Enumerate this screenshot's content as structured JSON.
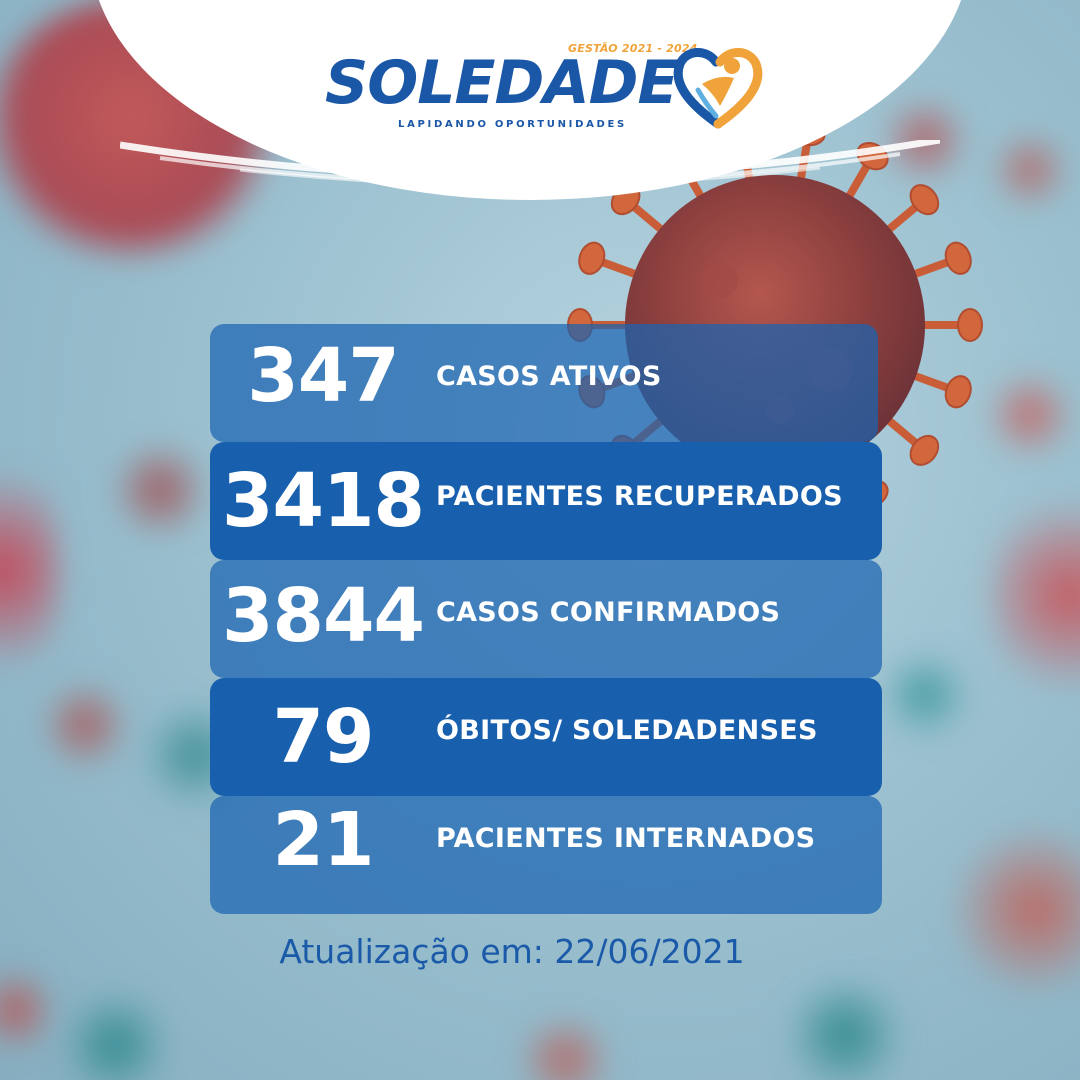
{
  "brand": {
    "name": "SOLEDADE",
    "term": "GESTÃO 2021 - 2024",
    "tagline": "LAPIDANDO OPORTUNIDADES",
    "colors": {
      "blue": "#1a57a7",
      "orange": "#f0a33a"
    }
  },
  "stats": [
    {
      "value": "347",
      "label": "CASOS ATIVOS"
    },
    {
      "value": "3418",
      "label": "PACIENTES RECUPERADOS"
    },
    {
      "value": "3844",
      "label": "CASOS CONFIRMADOS"
    },
    {
      "value": "79",
      "label": "ÓBITOS/ SOLEDADENSES"
    },
    {
      "value": "21",
      "label": "PACIENTES INTERNADOS"
    }
  ],
  "update": "Atualização em: 22/06/2021",
  "background": {
    "theme": "coronavirus-illustration"
  }
}
